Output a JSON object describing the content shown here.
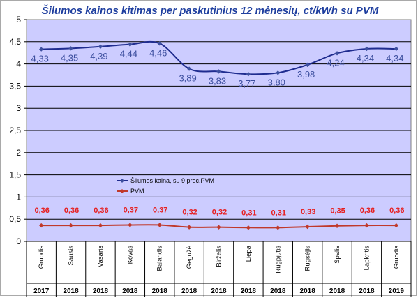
{
  "chart_data": {
    "type": "line",
    "title": "Šilumos kainos kitimas per paskutinius 12 mėnesių, ct/kWh su PVM",
    "categories": [
      "Gruodis",
      "Sausis",
      "Vasaris",
      "Kovas",
      "Balandis",
      "Gegužė",
      "Birželis",
      "Liepa",
      "Rugpjūtis",
      "Rugsėjis",
      "Spalis",
      "Lapkritis",
      "Gruodis"
    ],
    "years": [
      "2017",
      "2018",
      "2018",
      "2018",
      "2018",
      "2018",
      "2018",
      "2018",
      "2018",
      "2018",
      "2018",
      "2018",
      "2019"
    ],
    "series": [
      {
        "name": "Šilumos kaina, su 9 proc.PVM",
        "color": "#1f2c8f",
        "values": [
          4.33,
          4.35,
          4.39,
          4.44,
          4.46,
          3.89,
          3.83,
          3.77,
          3.8,
          3.98,
          4.24,
          4.34,
          4.34
        ],
        "labels": [
          "4,33",
          "4,35",
          "4,39",
          "4,44",
          "4,46",
          "3,89",
          "3,83",
          "3,77",
          "3,80",
          "3,98",
          "4,24",
          "4,34",
          "4,34"
        ]
      },
      {
        "name": "PVM",
        "color": "#c0392b",
        "values": [
          0.36,
          0.36,
          0.36,
          0.37,
          0.37,
          0.32,
          0.32,
          0.31,
          0.31,
          0.33,
          0.35,
          0.36,
          0.36
        ],
        "labels": [
          "0,36",
          "0,36",
          "0,36",
          "0,37",
          "0,37",
          "0,32",
          "0,32",
          "0,31",
          "0,31",
          "0,33",
          "0,35",
          "0,36",
          "0,36"
        ]
      }
    ],
    "yticks": [
      "0",
      "0,5",
      "1",
      "1,5",
      "2",
      "2,5",
      "3",
      "3,5",
      "4",
      "4,5",
      "5"
    ],
    "ylim": [
      0,
      5
    ],
    "grid": true,
    "plot_background": "#ccccff",
    "legend_placement": "center-left"
  }
}
